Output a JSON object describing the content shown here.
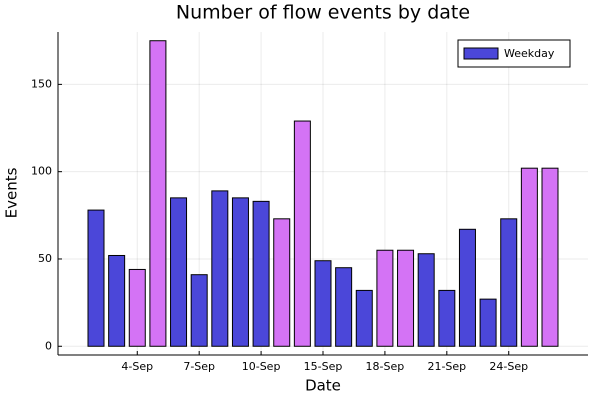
{
  "chart_data": {
    "type": "bar",
    "title": "Number of flow events by date",
    "x_label": "Date",
    "y_label": "Events",
    "categories": [
      null,
      null,
      "4-Sep",
      null,
      null,
      "7-Sep",
      null,
      null,
      "10-Sep",
      null,
      null,
      "15-Sep",
      null,
      null,
      "18-Sep",
      null,
      null,
      "21-Sep",
      null,
      null,
      "24-Sep",
      null,
      null
    ],
    "series": [
      {
        "name": "Weekday",
        "color": "#4b47d9",
        "values": [
          78,
          52,
          44,
          175,
          85,
          41,
          89,
          85,
          83,
          73,
          129,
          49,
          45,
          32,
          55,
          55,
          53,
          32,
          67,
          27,
          73,
          102,
          102
        ]
      }
    ],
    "bar_colors": [
      "#4b47d9",
      "#4b47d9",
      "#d473f5",
      "#d473f5",
      "#4b47d9",
      "#4b47d9",
      "#4b47d9",
      "#4b47d9",
      "#4b47d9",
      "#d473f5",
      "#d473f5",
      "#4b47d9",
      "#4b47d9",
      "#4b47d9",
      "#d473f5",
      "#d473f5",
      "#4b47d9",
      "#4b47d9",
      "#4b47d9",
      "#4b47d9",
      "#4b47d9",
      "#d473f5",
      "#d473f5"
    ],
    "ylim": [
      -5,
      180
    ],
    "yticks": [
      0,
      50,
      100,
      150
    ],
    "grid": true,
    "legend": "top-right"
  }
}
